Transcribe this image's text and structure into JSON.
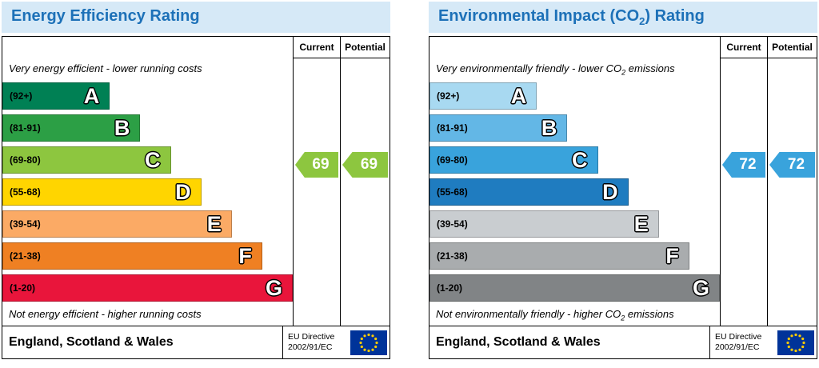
{
  "colors": {
    "header_background": "#d6e9f7",
    "header_text": "#1d71b8",
    "flag_background": "#003399",
    "flag_stars": "#ffcc00",
    "border": "#000000"
  },
  "chart_data": [
    {
      "type": "bar",
      "title": "Energy Efficiency Rating",
      "categories": [
        "A (92+)",
        "B (81-91)",
        "C (69-80)",
        "D (55-68)",
        "E (39-54)",
        "F (21-38)",
        "G (1-20)"
      ],
      "band_colors": [
        "#008054",
        "#2c9f45",
        "#8dc63f",
        "#ffd500",
        "#fbaa65",
        "#ef8023",
        "#e9153b"
      ],
      "band_widths_pct": [
        37,
        47.5,
        58,
        68.5,
        79,
        89.5,
        100
      ],
      "current": 69,
      "potential": 69,
      "current_band": "C",
      "potential_band": "C",
      "top_note": "Very energy efficient - lower running costs",
      "bottom_note": "Not energy efficient - higher running costs",
      "region": "England, Scotland & Wales",
      "directive": "EU Directive 2002/91/EC"
    },
    {
      "type": "bar",
      "title": "Environmental Impact (CO2) Rating",
      "categories": [
        "A (92+)",
        "B (81-91)",
        "C (69-80)",
        "D (55-68)",
        "E (39-54)",
        "F (21-38)",
        "G (1-20)"
      ],
      "band_colors": [
        "#a8d9f1",
        "#63b7e6",
        "#39a3dc",
        "#1f7cc0",
        "#c9cdd0",
        "#a9acae",
        "#818486"
      ],
      "band_widths_pct": [
        37,
        47.5,
        58,
        68.5,
        79,
        89.5,
        100
      ],
      "current": 72,
      "potential": 72,
      "current_band": "C",
      "potential_band": "C",
      "top_note": "Very environmentally friendly - lower CO2 emissions",
      "bottom_note": "Not environmentally friendly - higher CO2 emissions",
      "region": "England, Scotland & Wales",
      "directive": "EU Directive 2002/91/EC"
    }
  ],
  "panels": [
    {
      "title": {
        "prefix": "Energy Efficiency Rating",
        "sub": "",
        "suffix": ""
      },
      "col_current": "Current",
      "col_potential": "Potential",
      "top_note": {
        "prefix": "Very energy efficient - lower running costs",
        "sub": "",
        "suffix": ""
      },
      "bottom_note": {
        "prefix": "Not energy efficient - higher running costs",
        "sub": "",
        "suffix": ""
      },
      "bands": [
        {
          "range": "(92+)",
          "letter": "A",
          "color": "#008054",
          "width_pct": 37
        },
        {
          "range": "(81-91)",
          "letter": "B",
          "color": "#2c9f45",
          "width_pct": 47.5
        },
        {
          "range": "(69-80)",
          "letter": "C",
          "color": "#8dc63f",
          "width_pct": 58
        },
        {
          "range": "(55-68)",
          "letter": "D",
          "color": "#ffd500",
          "width_pct": 68.5
        },
        {
          "range": "(39-54)",
          "letter": "E",
          "color": "#fbaa65",
          "width_pct": 79
        },
        {
          "range": "(21-38)",
          "letter": "F",
          "color": "#ef8023",
          "width_pct": 89.5
        },
        {
          "range": "(1-20)",
          "letter": "G",
          "color": "#e9153b",
          "width_pct": 100
        }
      ],
      "current": {
        "label": "69",
        "color": "#8dc63f"
      },
      "potential": {
        "label": "69",
        "color": "#8dc63f"
      },
      "footer": {
        "region": "England, Scotland & Wales",
        "directive_line1": "EU Directive",
        "directive_line2": "2002/91/EC"
      }
    },
    {
      "title": {
        "prefix": "Environmental Impact (CO",
        "sub": "2",
        "suffix": ") Rating"
      },
      "col_current": "Current",
      "col_potential": "Potential",
      "top_note": {
        "prefix": "Very environmentally friendly - lower CO",
        "sub": "2",
        "suffix": " emissions"
      },
      "bottom_note": {
        "prefix": "Not environmentally friendly - higher CO",
        "sub": "2",
        "suffix": " emissions"
      },
      "bands": [
        {
          "range": "(92+)",
          "letter": "A",
          "color": "#a8d9f1",
          "width_pct": 37
        },
        {
          "range": "(81-91)",
          "letter": "B",
          "color": "#63b7e6",
          "width_pct": 47.5
        },
        {
          "range": "(69-80)",
          "letter": "C",
          "color": "#39a3dc",
          "width_pct": 58
        },
        {
          "range": "(55-68)",
          "letter": "D",
          "color": "#1f7cc0",
          "width_pct": 68.5
        },
        {
          "range": "(39-54)",
          "letter": "E",
          "color": "#c9cdd0",
          "width_pct": 79
        },
        {
          "range": "(21-38)",
          "letter": "F",
          "color": "#a9acae",
          "width_pct": 89.5
        },
        {
          "range": "(1-20)",
          "letter": "G",
          "color": "#818486",
          "width_pct": 100
        }
      ],
      "current": {
        "label": "72",
        "color": "#39a3dc"
      },
      "potential": {
        "label": "72",
        "color": "#39a3dc"
      },
      "footer": {
        "region": "England, Scotland & Wales",
        "directive_line1": "EU Directive",
        "directive_line2": "2002/91/EC"
      }
    }
  ]
}
